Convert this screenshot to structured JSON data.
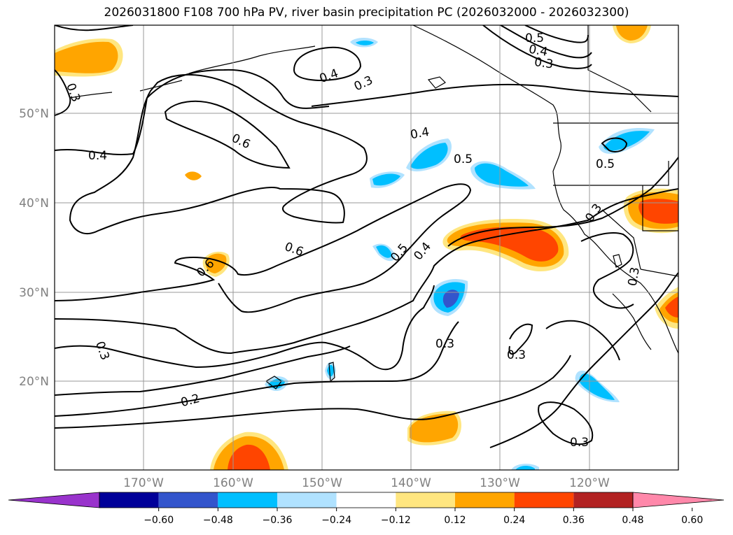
{
  "title": "2026031800 F108 700 hPa PV, river basin precipitation PC (2026032000 - 2026032300)",
  "lat_labels": [
    "50°N",
    "40°N",
    "30°N",
    "20°N"
  ],
  "lon_labels": [
    "170°W",
    "160°W",
    "150°W",
    "140°W",
    "130°W",
    "120°W"
  ],
  "contour_labels": [
    "0.3",
    "0.4",
    "0.6",
    "0.4",
    "0.3",
    "0.5",
    "0.4",
    "0.3",
    "0.4",
    "0.5",
    "0.5",
    "0.3",
    "0.6",
    "0.6",
    "0.5",
    "0.4",
    "0.3",
    "0.3",
    "0.3",
    "0.2",
    "0.3",
    "0.3"
  ],
  "colorbar": {
    "ticks": [
      "−0.60",
      "−0.48",
      "−0.36",
      "−0.24",
      "−0.12",
      "0.12",
      "0.24",
      "0.36",
      "0.48",
      "0.60"
    ],
    "colors": [
      "#9933cc",
      "#000099",
      "#3355cc",
      "#00bfff",
      "#b0e2ff",
      "#ffffff",
      "#ffe680",
      "#ffa500",
      "#ff4500",
      "#b22222",
      "#ff88aa"
    ]
  },
  "colors": {
    "pos_light": "#ffe680",
    "pos_mid": "#ffa500",
    "pos_high": "#ff4500",
    "neg_light": "#b0e2ff",
    "neg_mid": "#00bfff",
    "neg_high": "#3355cc"
  }
}
